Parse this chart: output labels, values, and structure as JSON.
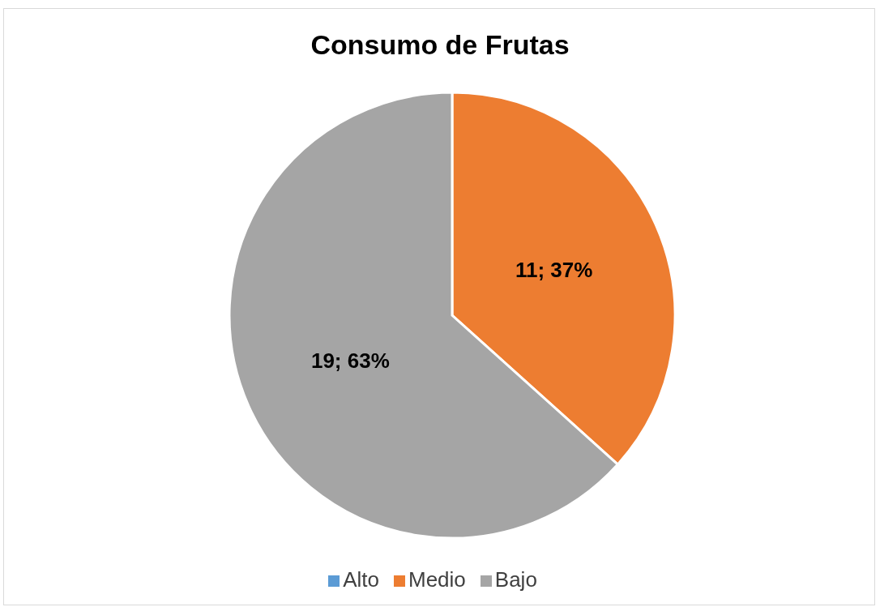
{
  "chart_data": {
    "type": "pie",
    "title": "Consumo de Frutas",
    "categories": [
      "Alto",
      "Medio",
      "Bajo"
    ],
    "values": [
      0,
      11,
      19
    ],
    "colors": [
      "#5b9bd5",
      "#ed7d31",
      "#a5a5a5"
    ],
    "value_labels": [
      null,
      "11; 37%",
      "19; 63%"
    ],
    "legend": "bottom"
  }
}
